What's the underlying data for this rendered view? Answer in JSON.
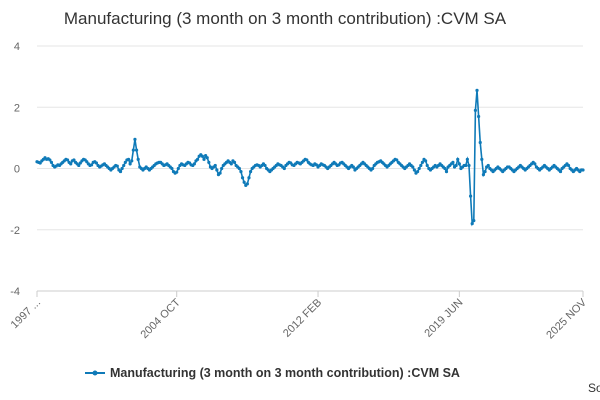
{
  "chart_data": {
    "type": "line",
    "title": "Manufacturing (3 month on 3 month contribution) :CVM SA",
    "source": "Source:",
    "legend": "bottom",
    "grid": true,
    "ylim": [
      -4,
      4
    ],
    "yticks": [
      -4,
      -2,
      0,
      2,
      4
    ],
    "categories": [
      "1997 ...",
      null,
      null,
      null,
      null,
      null,
      null,
      null,
      null,
      null,
      null,
      null,
      null,
      null,
      null,
      null,
      null,
      null,
      null,
      null,
      null,
      null,
      null,
      null,
      null,
      null,
      null,
      null,
      null,
      null,
      null,
      null,
      null,
      null,
      null,
      null,
      null,
      null,
      null,
      null,
      null,
      null,
      null,
      null,
      null,
      null,
      null,
      null,
      null,
      null,
      null,
      null,
      null,
      null,
      null,
      null,
      null,
      null,
      null,
      null,
      null,
      null,
      null,
      null,
      null,
      null,
      null,
      null,
      null,
      null,
      null,
      null,
      null,
      null,
      null,
      null,
      null,
      null,
      null,
      null,
      null,
      null,
      null,
      null,
      null,
      null,
      null,
      "2004 OCT",
      null,
      null,
      null,
      null,
      null,
      null,
      null,
      null,
      null,
      null,
      null,
      null,
      null,
      null,
      null,
      null,
      null,
      null,
      null,
      null,
      null,
      null,
      null,
      null,
      null,
      null,
      null,
      null,
      null,
      null,
      null,
      null,
      null,
      null,
      null,
      null,
      null,
      null,
      null,
      null,
      null,
      null,
      null,
      null,
      null,
      null,
      null,
      null,
      null,
      null,
      null,
      null,
      null,
      null,
      null,
      null,
      null,
      null,
      null,
      null,
      null,
      null,
      null,
      null,
      null,
      null,
      null,
      null,
      null,
      null,
      null,
      null,
      null,
      null,
      null,
      null,
      null,
      null,
      null,
      null,
      null,
      null,
      null,
      null,
      null,
      null,
      null,
      "2012 FEB",
      null,
      null,
      null,
      null,
      null,
      null,
      null,
      null,
      null,
      null,
      null,
      null,
      null,
      null,
      null,
      null,
      null,
      null,
      null,
      null,
      null,
      null,
      null,
      null,
      null,
      null,
      null,
      null,
      null,
      null,
      null,
      null,
      null,
      null,
      null,
      null,
      null,
      null,
      null,
      null,
      null,
      null,
      null,
      null,
      null,
      null,
      null,
      null,
      null,
      null,
      null,
      null,
      null,
      null,
      null,
      null,
      null,
      null,
      null,
      null,
      null,
      null,
      null,
      null,
      null,
      null,
      null,
      null,
      null,
      null,
      null,
      null,
      null,
      null,
      null,
      null,
      null,
      null,
      null,
      null,
      null,
      null,
      null,
      null,
      null,
      null,
      null,
      "2019 JUN",
      null,
      null,
      null,
      null,
      null,
      null,
      null,
      null,
      null,
      null,
      null,
      null,
      null,
      null,
      null,
      null,
      null,
      null,
      null,
      null,
      null,
      null,
      null,
      null,
      null,
      null,
      null,
      null,
      null,
      null,
      null,
      null,
      null,
      null,
      null,
      null,
      null,
      null,
      null,
      null,
      null,
      null,
      null,
      null,
      null,
      null,
      null,
      null,
      null,
      null,
      null,
      null,
      null,
      null,
      null,
      null,
      null,
      null,
      null,
      null,
      null,
      null,
      null,
      null,
      null,
      null,
      null,
      null,
      null,
      null,
      null,
      null,
      null,
      null,
      null,
      null,
      "2025 NOV"
    ],
    "series": [
      {
        "name": "Manufacturing (3 month on 3 month contribution) :CVM SA",
        "color": "#0f7ab8",
        "values": [
          0.22,
          0.2,
          0.18,
          0.25,
          0.3,
          0.35,
          0.3,
          0.32,
          0.28,
          0.2,
          0.1,
          0.05,
          0.08,
          0.12,
          0.1,
          0.15,
          0.2,
          0.25,
          0.3,
          0.28,
          0.2,
          0.15,
          0.25,
          0.28,
          0.2,
          0.15,
          0.1,
          0.18,
          0.25,
          0.3,
          0.28,
          0.22,
          0.15,
          0.1,
          0.12,
          0.2,
          0.22,
          0.18,
          0.1,
          0.05,
          0.08,
          0.12,
          0.15,
          0.1,
          0.05,
          0,
          -0.05,
          0,
          0.05,
          0.1,
          0.08,
          -0.05,
          -0.1,
          0,
          0.1,
          0.2,
          0.28,
          0.3,
          0.15,
          0.25,
          0.6,
          0.95,
          0.6,
          0.3,
          0.05,
          0,
          -0.05,
          0,
          0.05,
          0,
          -0.05,
          0,
          0.05,
          0.1,
          0.15,
          0.18,
          0.2,
          0.2,
          0.15,
          0.1,
          0.12,
          0.15,
          0.1,
          0.05,
          0,
          -0.1,
          -0.15,
          -0.12,
          0,
          0.1,
          0.15,
          0.12,
          0.1,
          0.15,
          0.2,
          0.18,
          0.12,
          0.1,
          0.15,
          0.25,
          0.3,
          0.4,
          0.45,
          0.4,
          0.3,
          0.42,
          0.35,
          0.2,
          0.05,
          0,
          0.05,
          0.1,
          -0.05,
          -0.2,
          -0.15,
          0,
          0.1,
          0.15,
          0.2,
          0.25,
          0.2,
          0.15,
          0.25,
          0.2,
          0.1,
          0.05,
          0,
          -0.1,
          -0.3,
          -0.45,
          -0.55,
          -0.5,
          -0.3,
          -0.1,
          0,
          0.05,
          0.1,
          0.12,
          0.1,
          0.05,
          0.1,
          0.15,
          0.1,
          0,
          -0.05,
          -0.1,
          -0.05,
          0,
          0.05,
          0.1,
          0.15,
          0.12,
          0.1,
          0.05,
          0,
          0.1,
          0.15,
          0.2,
          0.18,
          0.12,
          0.1,
          0.15,
          0.2,
          0.18,
          0.15,
          0.2,
          0.25,
          0.3,
          0.28,
          0.2,
          0.15,
          0.12,
          0.1,
          0.15,
          0.12,
          0.05,
          0.1,
          0.15,
          0.12,
          0.1,
          0.05,
          0,
          0.05,
          0.1,
          0.15,
          0.2,
          0.15,
          0.1,
          0.12,
          0.18,
          0.2,
          0.15,
          0.1,
          0.05,
          0,
          0.05,
          0.1,
          0.05,
          -0.05,
          0,
          0.05,
          0.1,
          0.15,
          0.2,
          0.15,
          0.1,
          0.05,
          0,
          -0.05,
          0,
          0.1,
          0.15,
          0.2,
          0.22,
          0.25,
          0.2,
          0.15,
          0.1,
          0.05,
          0.1,
          0.15,
          0.2,
          0.25,
          0.3,
          0.28,
          0.2,
          0.15,
          0.1,
          0.05,
          0,
          0.05,
          0.1,
          0.15,
          0.1,
          0.05,
          -0.05,
          -0.15,
          -0.1,
          0,
          0.1,
          0.2,
          0.3,
          0.25,
          0.1,
          0,
          -0.05,
          0,
          0.05,
          0.1,
          0.05,
          0.1,
          0.15,
          0.1,
          0.05,
          0,
          -0.1,
          0.05,
          0.1,
          0.15,
          0.2,
          0.05,
          0.1,
          0.3,
          0.15,
          0,
          0.05,
          0.1,
          0.1,
          0.3,
          0.1,
          -0.9,
          -1.8,
          -1.7,
          1.9,
          2.55,
          1.7,
          0.85,
          0.3,
          -0.2,
          -0.1,
          0.05,
          0.1,
          0,
          -0.05,
          -0.1,
          -0.05,
          0,
          0.05,
          0,
          -0.05,
          -0.1,
          -0.05,
          0,
          0.05,
          0.05,
          0,
          -0.05,
          -0.1,
          -0.05,
          0,
          0.05,
          0.1,
          0.05,
          0,
          -0.05,
          0,
          0.05,
          0.1,
          0.15,
          0.2,
          0.15,
          0.05,
          0,
          -0.05,
          0,
          0.05,
          0.1,
          0.05,
          0,
          -0.05,
          0,
          0.05,
          0.1,
          0.05,
          0,
          -0.05,
          -0.1,
          0,
          0.05,
          0.1,
          0.15,
          0.1,
          0,
          -0.05,
          -0.1,
          -0.05,
          0,
          -0.05,
          -0.1,
          -0.05,
          -0.05
        ]
      }
    ]
  }
}
